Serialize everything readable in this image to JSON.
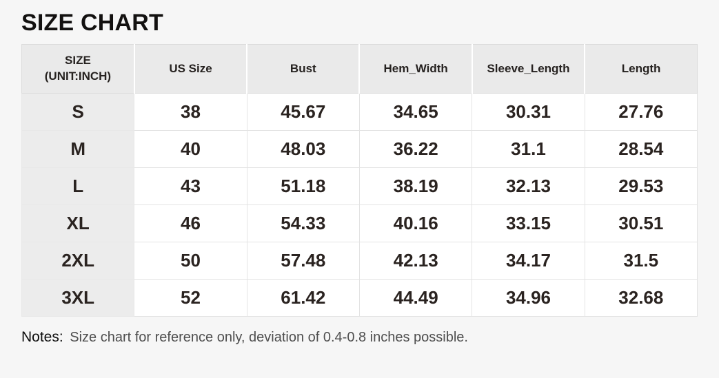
{
  "title": "SIZE CHART",
  "table": {
    "header": {
      "size_line1": "SIZE",
      "size_line2": "(UNIT:INCH)",
      "us_size": "US Size",
      "bust": "Bust",
      "hem_width": "Hem_Width",
      "sleeve_length": "Sleeve_Length",
      "length": "Length"
    },
    "rows": [
      {
        "size": "S",
        "values": [
          "38",
          "45.67",
          "34.65",
          "30.31",
          "27.76"
        ]
      },
      {
        "size": "M",
        "values": [
          "40",
          "48.03",
          "36.22",
          "31.1",
          "28.54"
        ]
      },
      {
        "size": "L",
        "values": [
          "43",
          "51.18",
          "38.19",
          "32.13",
          "29.53"
        ]
      },
      {
        "size": "XL",
        "values": [
          "46",
          "54.33",
          "40.16",
          "33.15",
          "30.51"
        ]
      },
      {
        "size": "2XL",
        "values": [
          "50",
          "57.48",
          "42.13",
          "34.17",
          "31.5"
        ]
      },
      {
        "size": "3XL",
        "values": [
          "52",
          "61.42",
          "44.49",
          "34.96",
          "32.68"
        ]
      }
    ]
  },
  "notes": {
    "label": "Notes:",
    "text": "Size chart for reference only, deviation of 0.4-0.8 inches possible."
  },
  "colors": {
    "page_background": "#f6f6f6",
    "header_cell_background": "#eaeaea",
    "size_column_background": "#ececec",
    "data_cell_background": "#ffffff",
    "text": "#2a2320",
    "notes_text": "#4e4e4e"
  },
  "chart_data": {
    "type": "table",
    "title": "SIZE CHART",
    "unit": "inch",
    "columns": [
      "SIZE (UNIT:INCH)",
      "US Size",
      "Bust",
      "Hem_Width",
      "Sleeve_Length",
      "Length"
    ],
    "rows": [
      [
        "S",
        38,
        45.67,
        34.65,
        30.31,
        27.76
      ],
      [
        "M",
        40,
        48.03,
        36.22,
        31.1,
        28.54
      ],
      [
        "L",
        43,
        51.18,
        38.19,
        32.13,
        29.53
      ],
      [
        "XL",
        46,
        54.33,
        40.16,
        33.15,
        30.51
      ],
      [
        "2XL",
        50,
        57.48,
        42.13,
        34.17,
        31.5
      ],
      [
        "3XL",
        52,
        61.42,
        44.49,
        34.96,
        32.68
      ]
    ],
    "notes": "Size chart for reference only, deviation of 0.4-0.8 inches possible."
  }
}
